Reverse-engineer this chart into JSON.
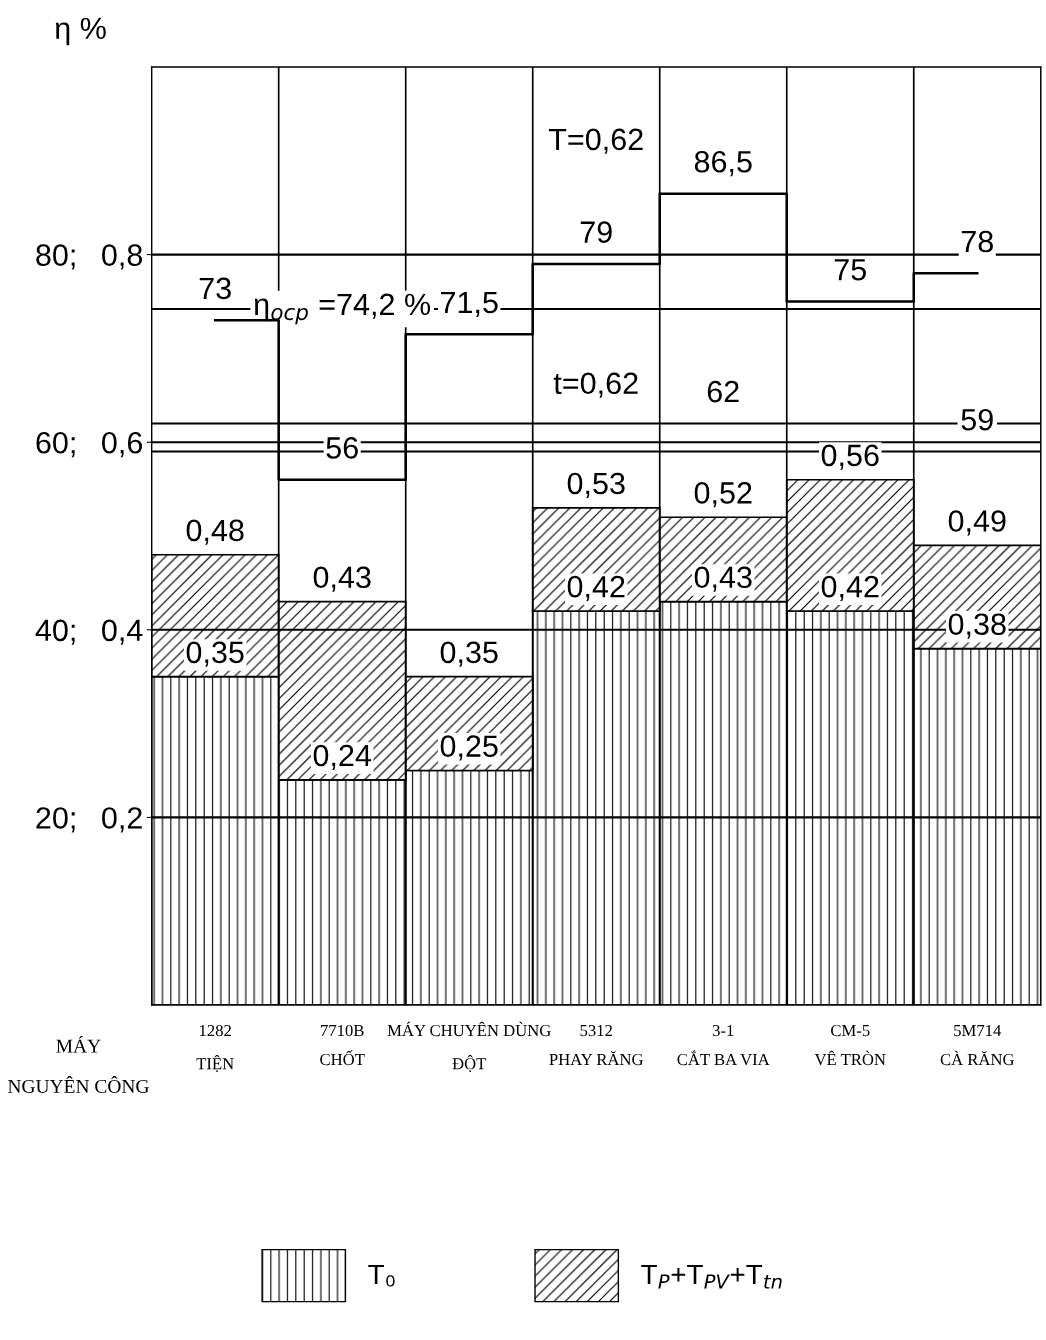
{
  "chart_data": {
    "type": "bar",
    "ylabel": "η %",
    "categories": [
      "1282\nTIỆN",
      "7710B\nCHỐT",
      "MÁY CHUYÊN DÙNG\nĐỘT",
      "5312\nPHAY RĂNG",
      "3-1\nCẮT BA VIA",
      "CM-5\nVÊ TRÒN",
      "5M714\nCÀ RĂNG"
    ],
    "series": [
      {
        "name": "T₀",
        "color": "#000000",
        "axis": "y2",
        "values": [
          0.35,
          0.24,
          0.25,
          0.42,
          0.43,
          0.42,
          0.38
        ],
        "value_labels": [
          "0,35",
          "0,24",
          "0,25",
          "0,42",
          "0,43",
          "0,42",
          "0,38"
        ]
      },
      {
        "name": "T$_{P}$+T$_{PV}$+T$_{tn}$",
        "color": "#000000",
        "axis": "y2",
        "values": [
          0.13,
          0.19,
          0.1,
          0.11,
          0.09,
          0.14,
          0.11
        ]
      },
      {
        "type": "step",
        "color": "#000000",
        "values": [
          73,
          56,
          71.5,
          79,
          86.5,
          75,
          78
        ],
        "value_labels": [
          "73",
          "56",
          "71,5",
          "79",
          "86,5",
          "75",
          "78"
        ]
      }
    ],
    "stacked": true,
    "totals": [
      "0,48",
      "0,43",
      "0,35",
      "0,53",
      "0,52",
      "0,56",
      "0,49"
    ],
    "ylim": [
      0,
      100
    ],
    "yticks": [
      {
        "value": 20,
        "label": "20;"
      },
      {
        "value": 40,
        "label": "40;"
      },
      {
        "value": 60,
        "label": "60;"
      },
      {
        "value": 80,
        "label": "80;"
      }
    ],
    "y2lim": [
      0,
      1
    ],
    "y2ticks": [
      {
        "value": 0.2,
        "label": "0,2"
      },
      {
        "value": 0.4,
        "label": "0,4"
      },
      {
        "value": 0.6,
        "label": "0,6"
      },
      {
        "value": 0.8,
        "label": "0,8"
      }
    ],
    "grid": "y",
    "legend": "bottom",
    "marker": "none",
    "line_style": "solid",
    "ref_lines": [
      {
        "axis": "y",
        "value": 74.2,
        "label": "η$_{ocp}$ =74,2 %"
      },
      {
        "axis": "y",
        "value": 62,
        "label": "62"
      },
      {
        "axis": "y",
        "value": 59,
        "label": "59"
      }
    ],
    "annotations": [
      "T=0,62",
      "t=0,62",
      "MÁY",
      "NGUYÊN CÔNG"
    ]
  }
}
